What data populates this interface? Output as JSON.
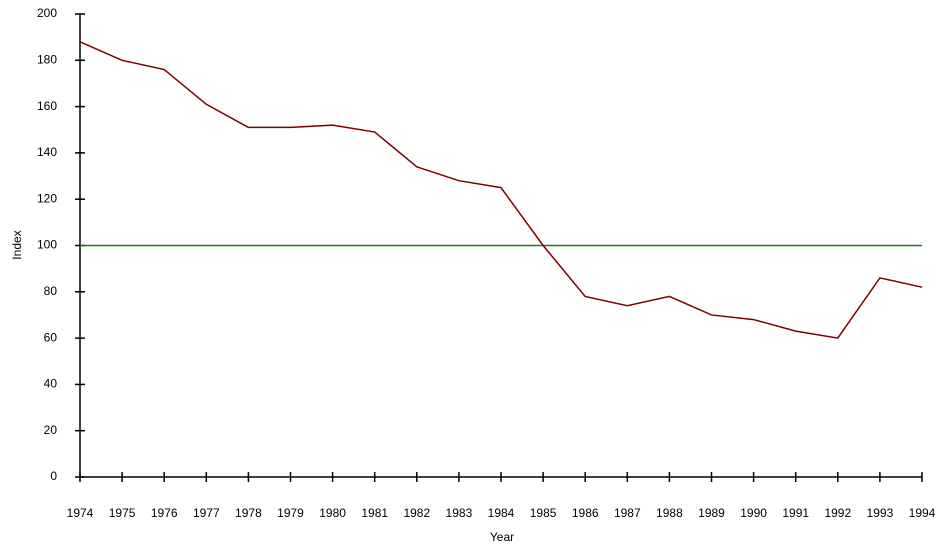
{
  "chart_data": {
    "type": "line",
    "x_label": "Year",
    "y_label": "Index",
    "x": [
      1974,
      1975,
      1976,
      1977,
      1978,
      1979,
      1980,
      1981,
      1982,
      1983,
      1984,
      1985,
      1986,
      1987,
      1988,
      1989,
      1990,
      1991,
      1992,
      1993,
      1994
    ],
    "series": [
      {
        "color": "#7b0000",
        "values": [
          188,
          180,
          176,
          161,
          151,
          151,
          152,
          149,
          134,
          128,
          125,
          100,
          78,
          74,
          78,
          70,
          68,
          63,
          60,
          86,
          82
        ]
      }
    ],
    "reference_line": {
      "value": 100,
      "color": "#1a7a1a"
    },
    "xlim": [
      1974,
      1994
    ],
    "xticks": [
      1974,
      1975,
      1976,
      1977,
      1978,
      1979,
      1980,
      1981,
      1982,
      1983,
      1984,
      1985,
      1986,
      1987,
      1988,
      1989,
      1990,
      1991,
      1992,
      1993,
      1994
    ],
    "ylim": [
      0,
      200
    ],
    "yticks": [
      0,
      20,
      40,
      60,
      80,
      100,
      120,
      140,
      160,
      180,
      200
    ]
  }
}
